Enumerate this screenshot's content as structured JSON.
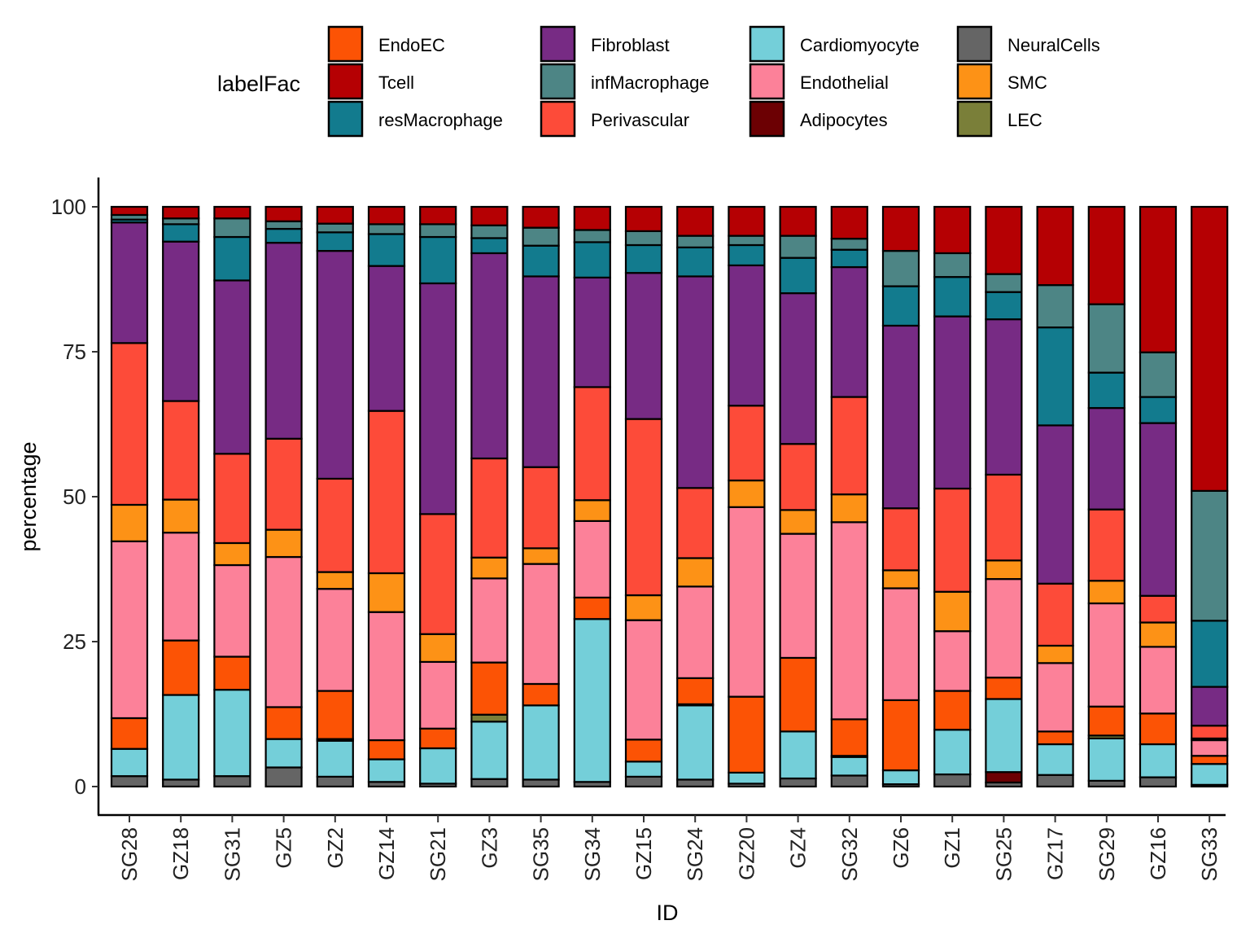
{
  "chart_data": {
    "type": "bar",
    "stacked": true,
    "title": "",
    "xlabel": "ID",
    "ylabel": "percentage",
    "ylim": [
      0,
      100
    ],
    "yticks": [
      0,
      25,
      50,
      75,
      100
    ],
    "grid": false,
    "legend": {
      "title": "labelFac",
      "placement": "top",
      "entries": [
        "EndoEC",
        "Tcell",
        "resMacrophage",
        "Fibroblast",
        "infMacrophage",
        "Perivascular",
        "Cardiomyocyte",
        "Endothelial",
        "Adipocytes",
        "NeuralCells",
        "SMC",
        "LEC"
      ]
    },
    "colors": {
      "EndoEC": "#FC5305",
      "Tcell": "#B50003",
      "resMacrophage": "#127B8E",
      "Fibroblast": "#772B84",
      "infMacrophage": "#4D8585",
      "Perivascular": "#FD4B39",
      "Cardiomyocyte": "#74CFD9",
      "Endothelial": "#FC8199",
      "Adipocytes": "#6C0003",
      "NeuralCells": "#656565",
      "SMC": "#FD9216",
      "LEC": "#7A7F39"
    },
    "stack_order_bottom_to_top": [
      "NeuralCells",
      "Adipocytes",
      "Cardiomyocyte",
      "LEC",
      "EndoEC",
      "Endothelial",
      "SMC",
      "Perivascular",
      "Fibroblast",
      "resMacrophage",
      "infMacrophage",
      "Tcell"
    ],
    "categories": [
      "SG28",
      "GZ18",
      "SG31",
      "GZ5",
      "GZ2",
      "GZ14",
      "SG21",
      "GZ3",
      "SG35",
      "SG34",
      "GZ15",
      "SG24",
      "GZ20",
      "GZ4",
      "SG32",
      "GZ6",
      "GZ1",
      "SG25",
      "GZ17",
      "SG29",
      "GZ16",
      "SG33"
    ],
    "series": [
      {
        "name": "NeuralCells",
        "values": [
          1.8,
          1.2,
          1.8,
          3.3,
          1.7,
          0.8,
          0.5,
          1.3,
          1.2,
          0.8,
          1.7,
          1.2,
          0.5,
          1.4,
          1.9,
          0.4,
          2.1,
          0.7,
          2.0,
          1.0,
          1.6,
          0.3
        ]
      },
      {
        "name": "Adipocytes",
        "values": [
          0,
          0,
          0,
          0,
          0,
          0,
          0,
          0,
          0,
          0,
          0,
          0,
          0,
          0,
          0,
          0,
          0,
          1.8,
          0,
          0,
          0,
          0
        ]
      },
      {
        "name": "Cardiomyocyte",
        "values": [
          4.7,
          14.6,
          14.9,
          4.9,
          6.2,
          3.9,
          6.1,
          9.9,
          12.8,
          28.1,
          2.6,
          12.8,
          1.9,
          8.1,
          3.2,
          2.4,
          7.7,
          12.6,
          5.3,
          7.3,
          5.7,
          3.6
        ]
      },
      {
        "name": "LEC",
        "values": [
          0,
          0,
          0,
          0,
          0.3,
          0,
          0,
          1.2,
          0,
          0,
          0,
          0.2,
          0,
          0,
          0.2,
          0,
          0,
          0,
          0,
          0.5,
          0,
          0
        ]
      },
      {
        "name": "EndoEC",
        "values": [
          5.3,
          9.4,
          5.7,
          5.5,
          8.3,
          3.3,
          3.4,
          9.0,
          3.7,
          3.7,
          3.8,
          4.5,
          13.1,
          12.7,
          6.3,
          12.1,
          6.7,
          3.7,
          2.2,
          5.0,
          5.3,
          1.4
        ]
      },
      {
        "name": "Endothelial",
        "values": [
          30.5,
          18.6,
          15.8,
          25.9,
          17.6,
          22.1,
          11.5,
          14.5,
          20.7,
          13.2,
          20.6,
          15.8,
          32.7,
          21.4,
          34.0,
          19.3,
          10.3,
          17.0,
          11.8,
          17.8,
          11.5,
          2.7
        ]
      },
      {
        "name": "SMC",
        "values": [
          6.3,
          5.7,
          3.8,
          4.7,
          2.9,
          6.7,
          4.8,
          3.6,
          2.7,
          3.6,
          4.3,
          4.9,
          4.6,
          4.1,
          4.8,
          3.1,
          6.8,
          3.2,
          3.0,
          3.9,
          4.2,
          0.3
        ]
      },
      {
        "name": "Perivascular",
        "values": [
          27.9,
          17.0,
          15.4,
          15.7,
          16.1,
          28.0,
          20.7,
          17.1,
          14.0,
          19.5,
          30.4,
          12.1,
          12.9,
          11.4,
          16.8,
          10.7,
          17.8,
          14.8,
          10.7,
          12.3,
          4.6,
          2.2
        ]
      },
      {
        "name": "Fibroblast",
        "values": [
          20.8,
          27.5,
          29.9,
          33.8,
          39.3,
          25.0,
          39.8,
          35.4,
          32.9,
          18.9,
          25.2,
          36.5,
          24.2,
          26.0,
          22.4,
          31.5,
          29.7,
          26.8,
          27.3,
          17.5,
          29.8,
          6.7
        ]
      },
      {
        "name": "resMacrophage",
        "values": [
          0.5,
          3.0,
          7.5,
          2.4,
          3.2,
          5.5,
          8.0,
          2.6,
          5.3,
          6.1,
          4.8,
          5.0,
          3.5,
          6.1,
          3.0,
          6.8,
          6.8,
          4.7,
          16.9,
          6.1,
          4.5,
          11.4
        ]
      },
      {
        "name": "infMacrophage",
        "values": [
          0.8,
          1.0,
          3.2,
          1.3,
          1.5,
          1.7,
          2.2,
          2.2,
          3.1,
          2.1,
          2.4,
          2.0,
          1.6,
          3.8,
          1.9,
          6.1,
          4.1,
          3.1,
          7.3,
          11.8,
          7.7,
          22.4
        ]
      },
      {
        "name": "Tcell",
        "values": [
          1.4,
          2.0,
          2.0,
          2.5,
          2.9,
          3.0,
          3.0,
          3.2,
          3.6,
          4.0,
          4.2,
          5.0,
          5.0,
          5.0,
          5.5,
          7.6,
          8.0,
          11.6,
          13.5,
          16.8,
          25.1,
          49.0
        ]
      }
    ]
  }
}
